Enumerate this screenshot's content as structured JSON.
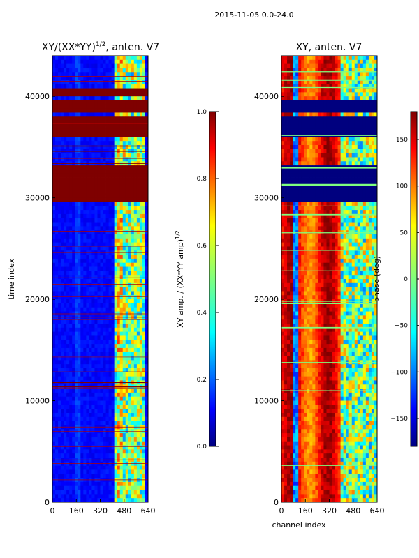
{
  "suptitle": "2015-11-05 0.0-24.0",
  "chart_data": [
    {
      "type": "heatmap",
      "title_main": "XY/(XX*YY)",
      "title_exp": "1/2",
      "title_tail": ", anten. V7",
      "xlabel": "",
      "ylabel": "time index",
      "xlim": [
        0,
        640
      ],
      "ylim": [
        0,
        44000
      ],
      "x_ticks": [
        0,
        160,
        320,
        480,
        640
      ],
      "y_ticks": [
        0,
        10000,
        20000,
        30000,
        40000
      ],
      "colorbar": {
        "label_main": "XY amp. / (XX*YY amp)",
        "label_exp": "1/2",
        "range": [
          0.0,
          1.0
        ],
        "ticks": [
          "0.0",
          "0.2",
          "0.4",
          "0.6",
          "0.8",
          "1.0"
        ],
        "colormap": "jet"
      },
      "saturated_blocks": [
        [
          29500,
          33000
        ],
        [
          36200,
          37900
        ],
        [
          38400,
          39500
        ],
        [
          40100,
          40700
        ]
      ],
      "flagged_rows": [
        34600,
        35100,
        33400,
        11800,
        11400
      ]
    },
    {
      "type": "heatmap",
      "title": "XY, anten. V7",
      "xlabel": "channel index",
      "ylabel": "",
      "xlim": [
        0,
        640
      ],
      "ylim": [
        0,
        44000
      ],
      "x_ticks": [
        0,
        160,
        320,
        480,
        640
      ],
      "y_ticks": [
        0,
        10000,
        20000,
        30000,
        40000
      ],
      "colorbar": {
        "label": "phase (deg)",
        "range": [
          -180,
          180
        ],
        "ticks": [
          "−150",
          "−100",
          "−50",
          "0",
          "50",
          "100",
          "150"
        ],
        "colormap": "jet"
      },
      "flagged_blocks": [
        [
          29500,
          33000
        ],
        [
          36200,
          37900
        ],
        [
          38400,
          39500
        ]
      ]
    }
  ],
  "colors": {
    "jet": [
      "#00007f",
      "#0000ff",
      "#007fff",
      "#00ffff",
      "#7fff7f",
      "#ffff00",
      "#ff7f00",
      "#ff0000",
      "#7f0000"
    ]
  }
}
